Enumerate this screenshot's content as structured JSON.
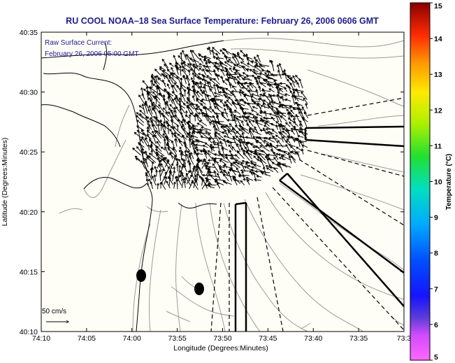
{
  "title": "RU COOL  NOAA–18  Sea Surface Temperature:  February 26, 2006 0606 GMT",
  "annotation": {
    "line1": "Raw Surface Current:",
    "line2": "February 26, 2006 05:00 GMT"
  },
  "axes": {
    "xlabel": "Longitude (Degrees:Minutes)",
    "ylabel": "Latitude (Degrees:Minutes)",
    "xticks": [
      "74:10",
      "74:05",
      "74:00",
      "73:55",
      "73:50",
      "73:45",
      "73:40",
      "73:35",
      "73:3"
    ],
    "yticks": [
      "40:35",
      "40:30",
      "40:25",
      "40:20",
      "40:15",
      "40:10"
    ]
  },
  "scale": {
    "label": "50 cm/s"
  },
  "colorbar": {
    "label": "Temperature (°C)",
    "ticks": [
      "15",
      "14",
      "13",
      "12",
      "11",
      "10",
      "9",
      "8",
      "7",
      "6",
      "5"
    ],
    "min": 5,
    "max": 15
  },
  "colors": {
    "title": "#1a1aa6",
    "annotation": "#1a1aa6",
    "land_bg": "#fffef6",
    "contour": "#9a9a9a",
    "coast": "#000000"
  }
}
